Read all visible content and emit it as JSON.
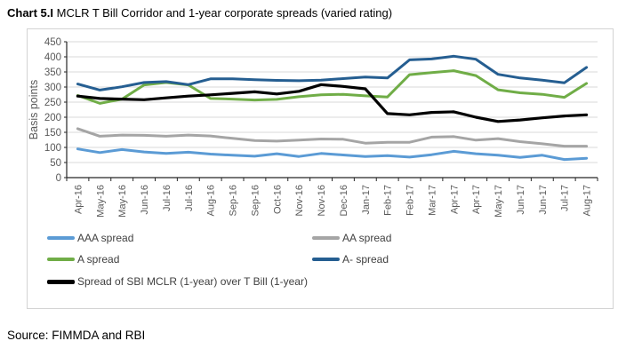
{
  "title": {
    "prefix": "Chart 5.I",
    "rest": " MCLR T Bill Corridor and 1-year corporate spreads (varied rating)"
  },
  "source": "Source: FIMMDA and RBI",
  "colors": {
    "gridline": "#d9d9d9",
    "axis": "#262626",
    "tick_label": "#595959",
    "axis_title": "#595959"
  },
  "chart_data": {
    "type": "line",
    "title": "MCLR T Bill Corridor and 1-year corporate spreads (varied rating)",
    "xlabel": "",
    "ylabel": "Basis points",
    "ylim": [
      0,
      450
    ],
    "yticks": [
      450,
      400,
      350,
      300,
      250,
      200,
      150,
      100,
      50,
      0
    ],
    "grid": true,
    "legend_position": "bottom",
    "categories": [
      "Apr-16",
      "May-16",
      "May-16",
      "Jun-16",
      "Jul-16",
      "Jul-16",
      "Aug-16",
      "Sep-16",
      "Sep-16",
      "Oct-16",
      "Nov-16",
      "Nov-16",
      "Dec-16",
      "Jan-17",
      "Feb-17",
      "Feb-17",
      "Mar-17",
      "Apr-17",
      "Apr-17",
      "May-17",
      "Jun-17",
      "Jun-17",
      "Jul-17",
      "Aug-17"
    ],
    "series": [
      {
        "name": "AAA spread",
        "color": "#5b9bd5",
        "values": [
          95,
          83,
          93,
          85,
          80,
          84,
          78,
          74,
          71,
          79,
          70,
          80,
          75,
          70,
          73,
          68,
          76,
          87,
          79,
          74,
          67,
          74,
          60,
          64
        ]
      },
      {
        "name": "AA spread",
        "color": "#a5a5a5",
        "values": [
          162,
          137,
          141,
          140,
          137,
          141,
          138,
          130,
          123,
          121,
          124,
          128,
          127,
          114,
          117,
          117,
          134,
          136,
          124,
          129,
          119,
          112,
          104,
          104
        ]
      },
      {
        "name": "A spread",
        "color": "#70ad47",
        "values": [
          272,
          246,
          260,
          307,
          315,
          307,
          262,
          260,
          257,
          259,
          268,
          274,
          276,
          271,
          267,
          341,
          348,
          354,
          338,
          291,
          281,
          276,
          266,
          312
        ]
      },
      {
        "name": "A- spread",
        "color": "#255e91",
        "values": [
          310,
          290,
          301,
          315,
          318,
          308,
          327,
          327,
          324,
          322,
          321,
          323,
          328,
          333,
          330,
          390,
          393,
          402,
          392,
          342,
          330,
          323,
          314,
          365
        ]
      },
      {
        "name": "Spread of SBI MCLR (1-year) over T Bill (1-year)",
        "color": "#000000",
        "values": [
          270,
          262,
          260,
          258,
          264,
          270,
          274,
          279,
          284,
          277,
          286,
          308,
          302,
          294,
          212,
          208,
          216,
          218,
          200,
          186,
          191,
          198,
          204,
          208
        ]
      }
    ]
  }
}
